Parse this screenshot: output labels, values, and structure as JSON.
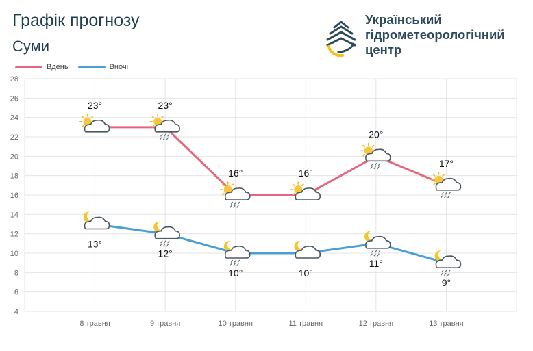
{
  "header": {
    "title": "Графік прогнозу",
    "city": "Суми"
  },
  "logo": {
    "line1": "Український",
    "line2": "гідрометеорологічний",
    "line3": "центр"
  },
  "colors": {
    "day": "#e3687e",
    "night": "#4a9fd3",
    "grid": "#e4e4e4"
  },
  "chart_data": {
    "type": "line",
    "categories": [
      "8 травня",
      "9 травня",
      "10 травня",
      "11 травня",
      "12 травня",
      "13 травня"
    ],
    "series": [
      {
        "name": "Вдень",
        "values": [
          23,
          23,
          16,
          16,
          20,
          17
        ],
        "labels": [
          "23°",
          "23°",
          "16°",
          "16°",
          "20°",
          "17°"
        ],
        "icons": [
          "sun-cloud-icon",
          "sun-cloud-rain-icon",
          "sun-cloud-rain-icon",
          "sun-cloud-icon",
          "sun-cloud-rain-icon",
          "sun-cloud-rain-icon"
        ]
      },
      {
        "name": "Вночі",
        "values": [
          13,
          12,
          10,
          10,
          11,
          9
        ],
        "labels": [
          "13°",
          "12°",
          "10°",
          "10°",
          "11°",
          "9°"
        ],
        "icons": [
          "moon-cloud-icon",
          "moon-cloud-rain-icon",
          "moon-cloud-rain-icon",
          "moon-cloud-icon",
          "moon-cloud-rain-icon",
          "moon-cloud-rain-icon"
        ]
      }
    ],
    "ylim": [
      4,
      28
    ],
    "yticks": [
      "4",
      "6",
      "8",
      "10",
      "12",
      "14",
      "16",
      "18",
      "20",
      "22",
      "24",
      "26",
      "28"
    ],
    "grid": true,
    "legend": "top-left"
  }
}
